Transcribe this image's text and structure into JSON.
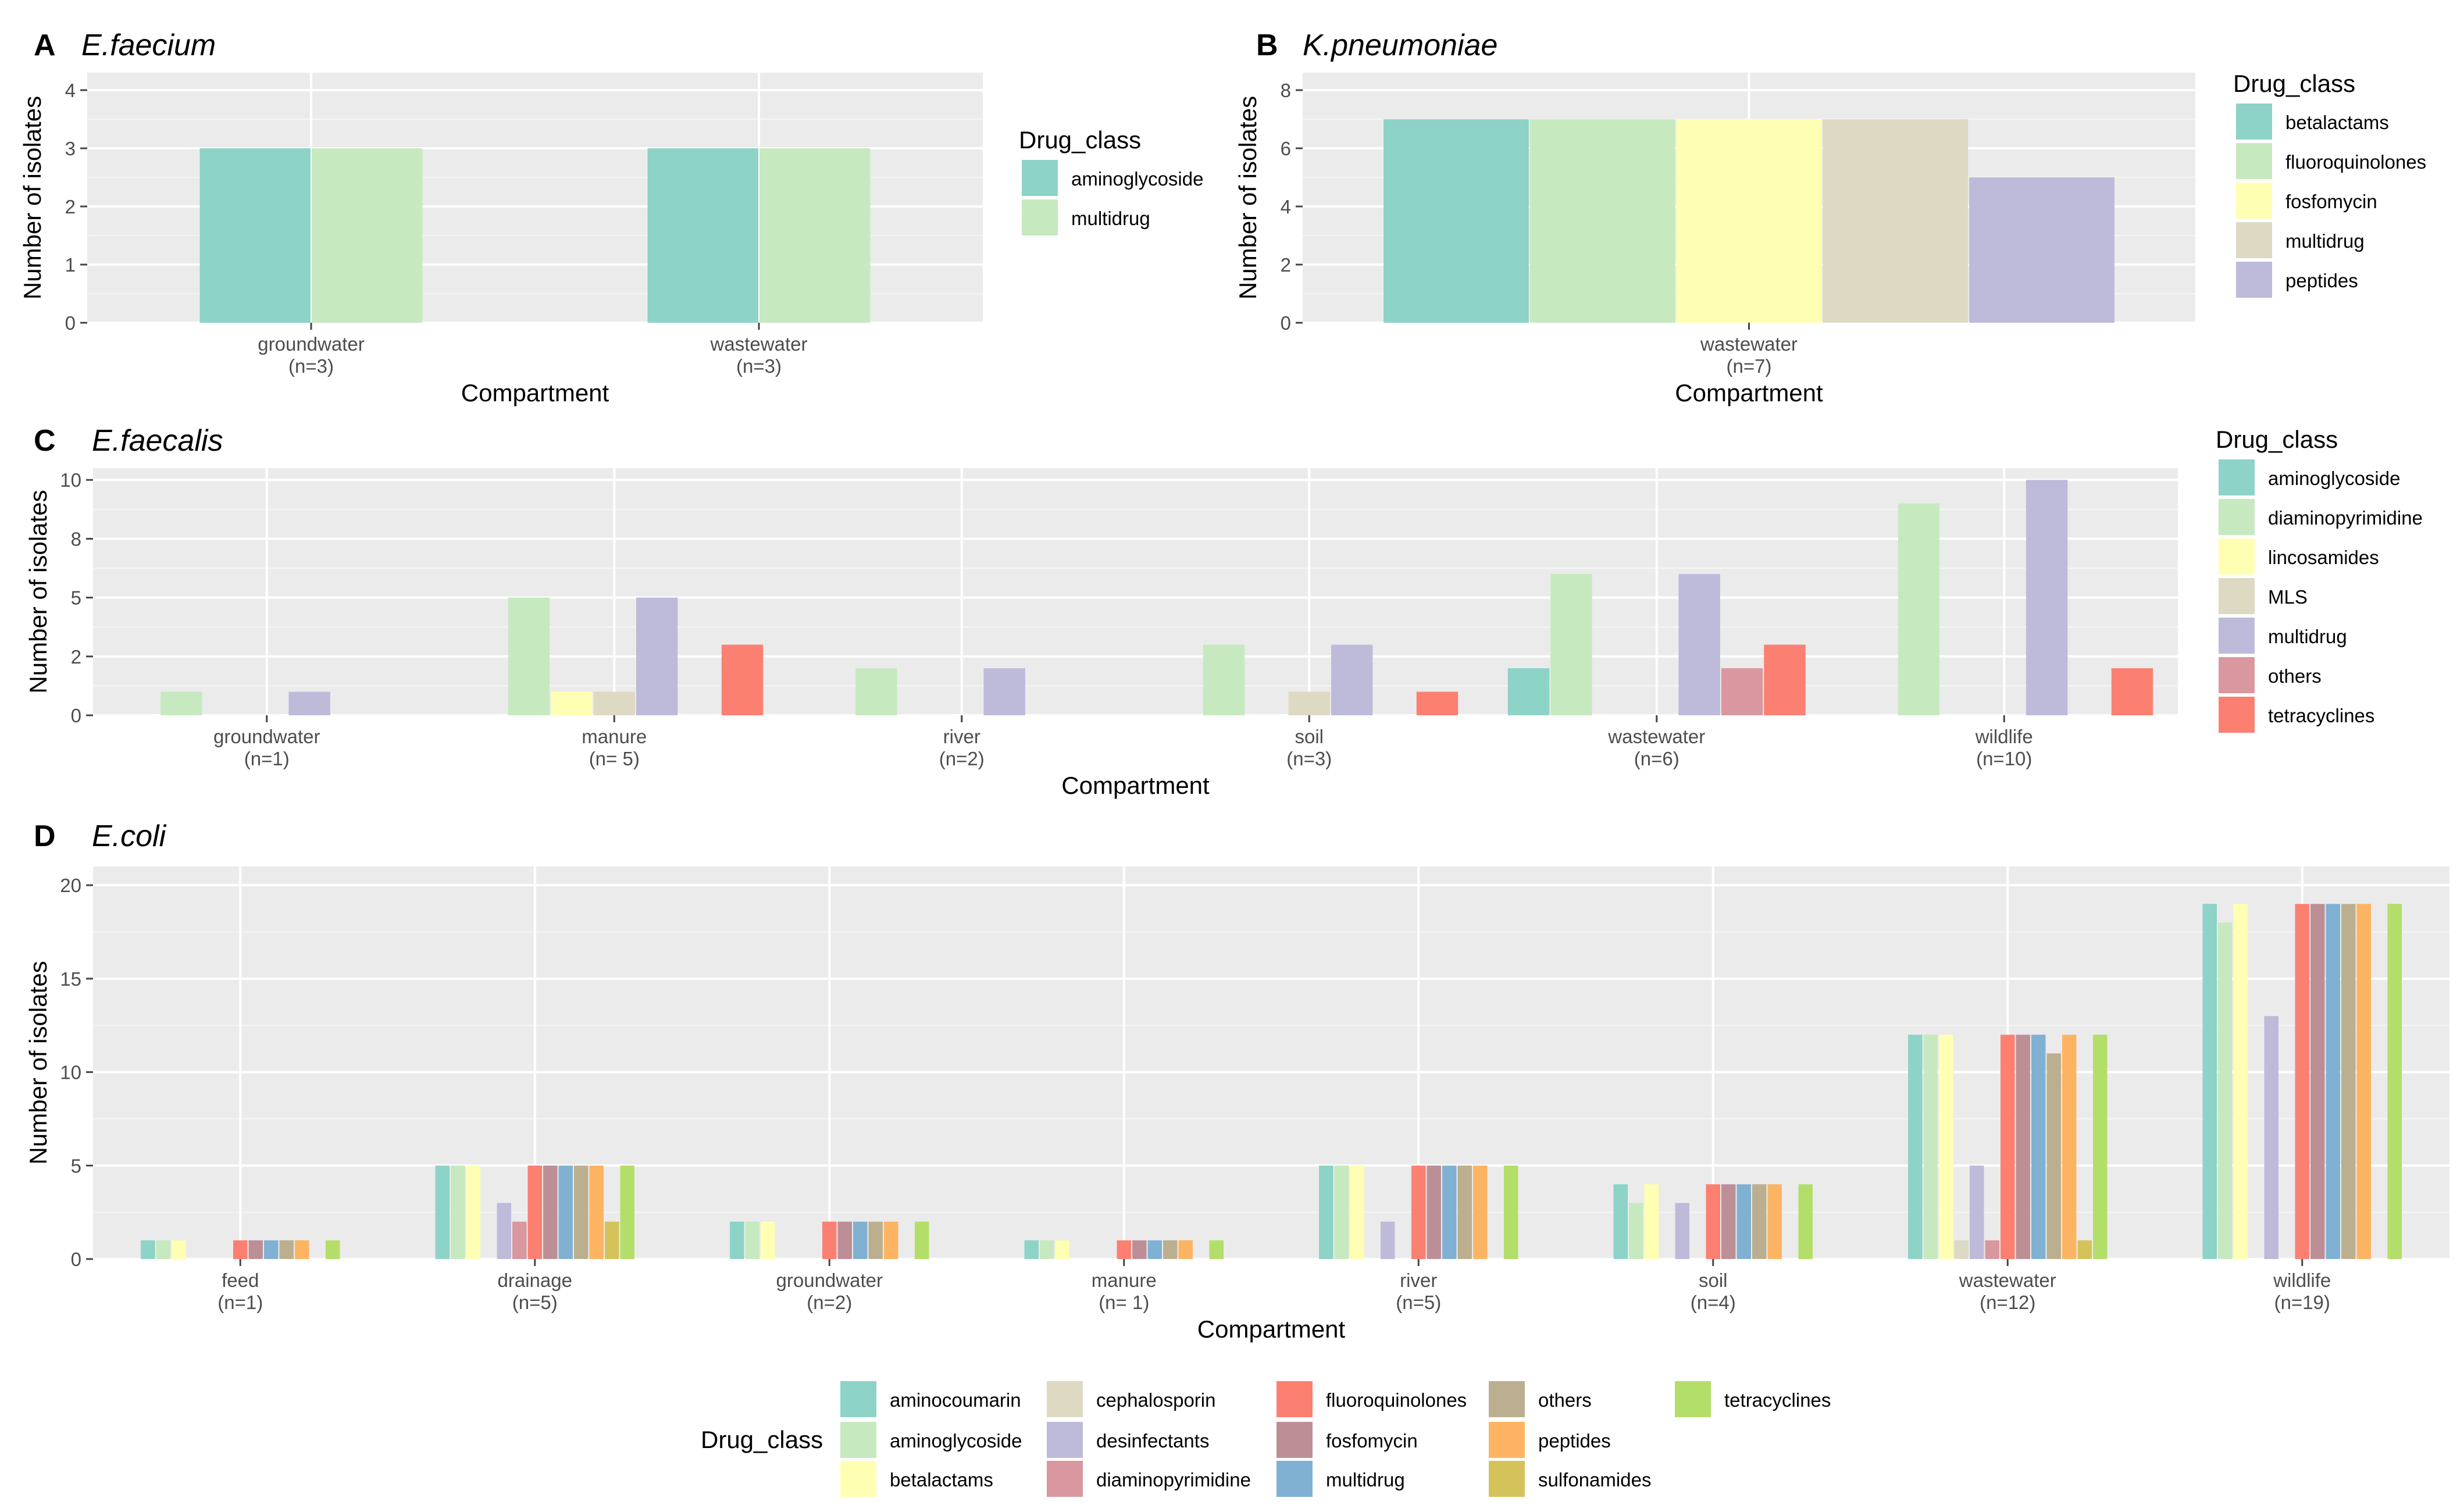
{
  "colors": {
    "aminocoumarin": "#8dd3c7",
    "aminoglycoside": "#8dd3c7",
    "betalactams": "#8dd3c7",
    "fluoroquinolones": "#c7e9c0",
    "diaminopyrimidine": "#c7e9c0",
    "fosfomycin": "#ffffb3",
    "lincosamides": "#ffffb3",
    "multidrug": "#c7e9c0",
    "MLS": "#ddd9c3",
    "peptides": "#bebada",
    "others": "#d9979f",
    "tetracyclines": "#fb8072",
    "panel_bg": "#ebebeb",
    "grid": "#ffffff"
  },
  "chart_data": [
    {
      "panel": "A",
      "title": "E.faecium",
      "type": "bar",
      "xlabel": "Compartment",
      "ylabel": "Number of isolates",
      "ylim": [
        0,
        4.3
      ],
      "yticks": [
        0,
        1,
        2,
        3,
        4
      ],
      "categories": [
        "groundwater\n(n=3)",
        "wastewater\n(n=3)"
      ],
      "series": [
        {
          "name": "aminoglycoside",
          "color": "#8dd3c7",
          "values": [
            3,
            3
          ]
        },
        {
          "name": "multidrug",
          "color": "#c7e9c0",
          "values": [
            3,
            3
          ]
        }
      ],
      "legend_title": "Drug_class"
    },
    {
      "panel": "B",
      "title": "K.pneumoniae",
      "type": "bar",
      "xlabel": "Compartment",
      "ylabel": "Number of isolates",
      "ylim": [
        0,
        8.6
      ],
      "yticks": [
        0,
        2,
        4,
        6,
        8
      ],
      "categories": [
        "wastewater\n(n=7)"
      ],
      "series": [
        {
          "name": "betalactams",
          "color": "#8dd3c7",
          "values": [
            7
          ]
        },
        {
          "name": "fluoroquinolones",
          "color": "#c7e9c0",
          "values": [
            7
          ]
        },
        {
          "name": "fosfomycin",
          "color": "#ffffb3",
          "values": [
            7
          ]
        },
        {
          "name": "multidrug",
          "color": "#ddd9c3",
          "values": [
            7
          ]
        },
        {
          "name": "peptides",
          "color": "#bebada",
          "values": [
            5
          ]
        }
      ],
      "legend_title": "Drug_class"
    },
    {
      "panel": "C",
      "title": "E.faecalis",
      "type": "bar",
      "xlabel": "Compartment",
      "ylabel": "Number of isolates",
      "ylim": [
        0,
        10.5
      ],
      "yticks": [
        0,
        2.5,
        5,
        7.5,
        10
      ],
      "ytick_labels": [
        "0",
        "2",
        "5",
        "8",
        "10"
      ],
      "categories": [
        "groundwater\n(n=1)",
        "manure\n(n= 5)",
        "river\n(n=2)",
        "soil\n(n=3)",
        "wastewater\n(n=6)",
        "wildlife\n(n=10)"
      ],
      "series": [
        {
          "name": "aminoglycoside",
          "color": "#8dd3c7",
          "values": [
            0,
            0,
            0,
            0,
            2,
            0
          ]
        },
        {
          "name": "diaminopyrimidine",
          "color": "#c7e9c0",
          "values": [
            1,
            5,
            2,
            3,
            6,
            9
          ]
        },
        {
          "name": "lincosamides",
          "color": "#ffffb3",
          "values": [
            0,
            1,
            0,
            0,
            0,
            0
          ]
        },
        {
          "name": "MLS",
          "color": "#ddd9c3",
          "values": [
            0,
            1,
            0,
            1,
            0,
            0
          ]
        },
        {
          "name": "multidrug",
          "color": "#bebada",
          "values": [
            1,
            5,
            2,
            3,
            6,
            10
          ]
        },
        {
          "name": "others",
          "color": "#d9979f",
          "values": [
            0,
            0,
            0,
            0,
            2,
            0
          ]
        },
        {
          "name": "tetracyclines",
          "color": "#fb8072",
          "values": [
            0,
            3,
            0,
            1,
            3,
            2
          ]
        }
      ],
      "legend_title": "Drug_class"
    },
    {
      "panel": "D",
      "title": "E.coli",
      "type": "bar",
      "xlabel": "Compartment",
      "ylabel": "Number of isolates",
      "ylim": [
        0,
        21
      ],
      "yticks": [
        0,
        5,
        10,
        15,
        20
      ],
      "categories": [
        "feed\n(n=1)",
        "drainage\n(n=5)",
        "groundwater\n(n=2)",
        "manure\n(n= 1)",
        "river\n(n=5)",
        "soil\n(n=4)",
        "wastewater\n(n=12)",
        "wildlife\n(n=19)"
      ],
      "series": [
        {
          "name": "aminocoumarin",
          "color": "#8dd3c7",
          "values": [
            1,
            5,
            2,
            1,
            5,
            4,
            12,
            19
          ]
        },
        {
          "name": "aminoglycoside",
          "color": "#c7e9c0",
          "values": [
            1,
            5,
            2,
            1,
            5,
            3,
            12,
            18
          ]
        },
        {
          "name": "betalactams",
          "color": "#ffffb3",
          "values": [
            1,
            5,
            2,
            1,
            5,
            4,
            12,
            19
          ]
        },
        {
          "name": "cephalosporin",
          "color": "#ddd9c3",
          "values": [
            0,
            0,
            0,
            0,
            0,
            0,
            1,
            0
          ]
        },
        {
          "name": "desinfectants",
          "color": "#bebada",
          "values": [
            0,
            3,
            0,
            0,
            2,
            3,
            5,
            13
          ]
        },
        {
          "name": "diaminopyrimidine",
          "color": "#d9979f",
          "values": [
            0,
            2,
            0,
            0,
            0,
            0,
            1,
            0
          ]
        },
        {
          "name": "fluoroquinolones",
          "color": "#fb8072",
          "values": [
            1,
            5,
            2,
            1,
            5,
            4,
            12,
            19
          ]
        },
        {
          "name": "fosfomycin",
          "color": "#bc8f97",
          "values": [
            1,
            5,
            2,
            1,
            5,
            4,
            12,
            19
          ]
        },
        {
          "name": "multidrug",
          "color": "#80b1d3",
          "values": [
            1,
            5,
            2,
            1,
            5,
            4,
            12,
            19
          ]
        },
        {
          "name": "others",
          "color": "#bcaf90",
          "values": [
            1,
            5,
            2,
            1,
            5,
            4,
            11,
            19
          ]
        },
        {
          "name": "peptides",
          "color": "#fdb462",
          "values": [
            1,
            5,
            2,
            1,
            5,
            4,
            12,
            19
          ]
        },
        {
          "name": "sulfonamides",
          "color": "#d4c35a",
          "values": [
            0,
            2,
            0,
            0,
            0,
            0,
            1,
            0
          ]
        },
        {
          "name": "tetracyclines",
          "color": "#b3de69",
          "values": [
            1,
            5,
            2,
            1,
            5,
            4,
            12,
            19
          ]
        }
      ],
      "legend_title": "Drug_class"
    }
  ]
}
